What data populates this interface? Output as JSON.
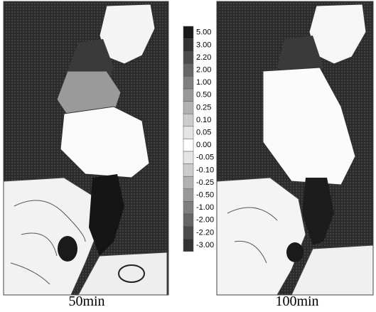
{
  "panels": [
    {
      "label": "50min"
    },
    {
      "label": "100min"
    }
  ],
  "legend": {
    "levels": [
      "5.00",
      "3.00",
      "2.20",
      "2.00",
      "1.00",
      "0.50",
      "0.25",
      "0.10",
      "0.05",
      "0.00",
      "-0.05",
      "-0.10",
      "-0.25",
      "-0.50",
      "-1.00",
      "-2.00",
      "-2.20",
      "-3.00"
    ]
  }
}
